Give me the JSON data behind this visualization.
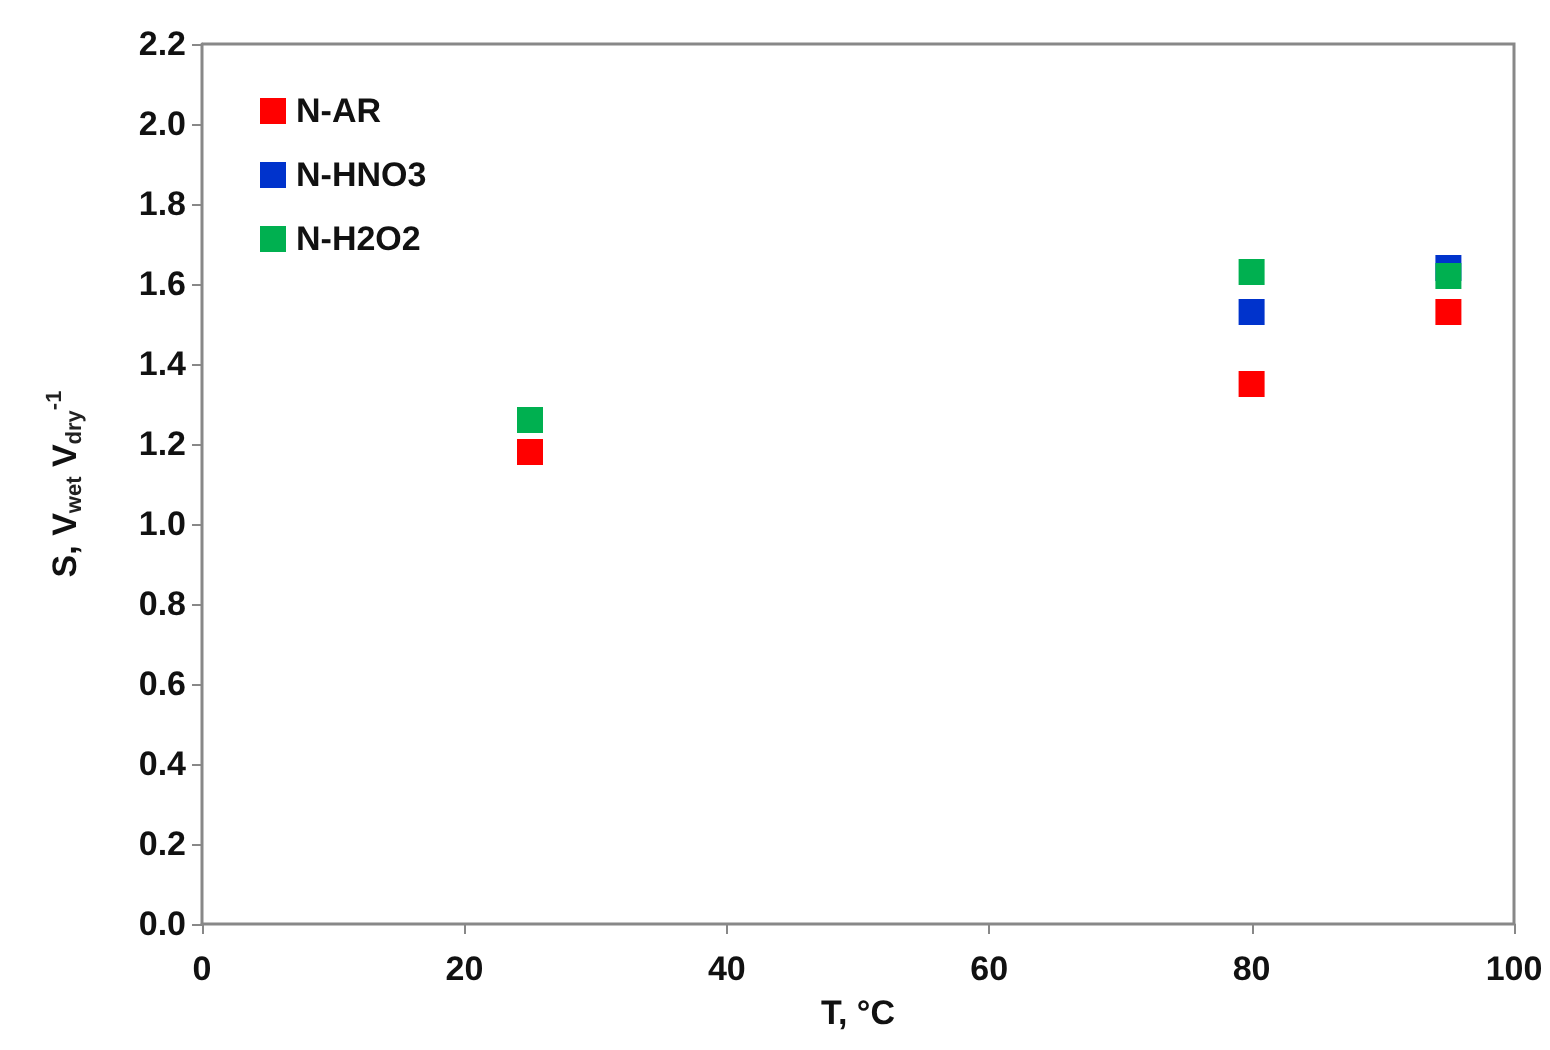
{
  "chart_data": {
    "type": "scatter",
    "xlabel": "T, °C",
    "ylabel": "S, V$_{wet}$ V$_{dry}$$^{-1}$",
    "x": [
      25,
      80,
      95
    ],
    "series": [
      {
        "name": "N-AR",
        "color": "#ff0000",
        "values": [
          1.18,
          1.35,
          1.53
        ]
      },
      {
        "name": "N-HNO3",
        "color": "#0033cc",
        "values": [
          null,
          1.53,
          1.64
        ]
      },
      {
        "name": "N-H2O2",
        "color": "#00b050",
        "values": [
          1.26,
          1.63,
          1.62
        ]
      }
    ],
    "xlim": [
      0,
      100
    ],
    "xticks": [
      0,
      20,
      40,
      60,
      80,
      100
    ],
    "ylim": [
      0,
      2.2
    ],
    "yticks": [
      {
        "value": 0,
        "label": "0.0"
      },
      0.2,
      0.4,
      0.6,
      0.8,
      {
        "value": 1,
        "label": "1.0"
      },
      1.2,
      1.4,
      1.6,
      1.8,
      {
        "value": 2,
        "label": "2.0"
      },
      2.2
    ],
    "marker": "square",
    "legend": "top left",
    "grid": false
  }
}
